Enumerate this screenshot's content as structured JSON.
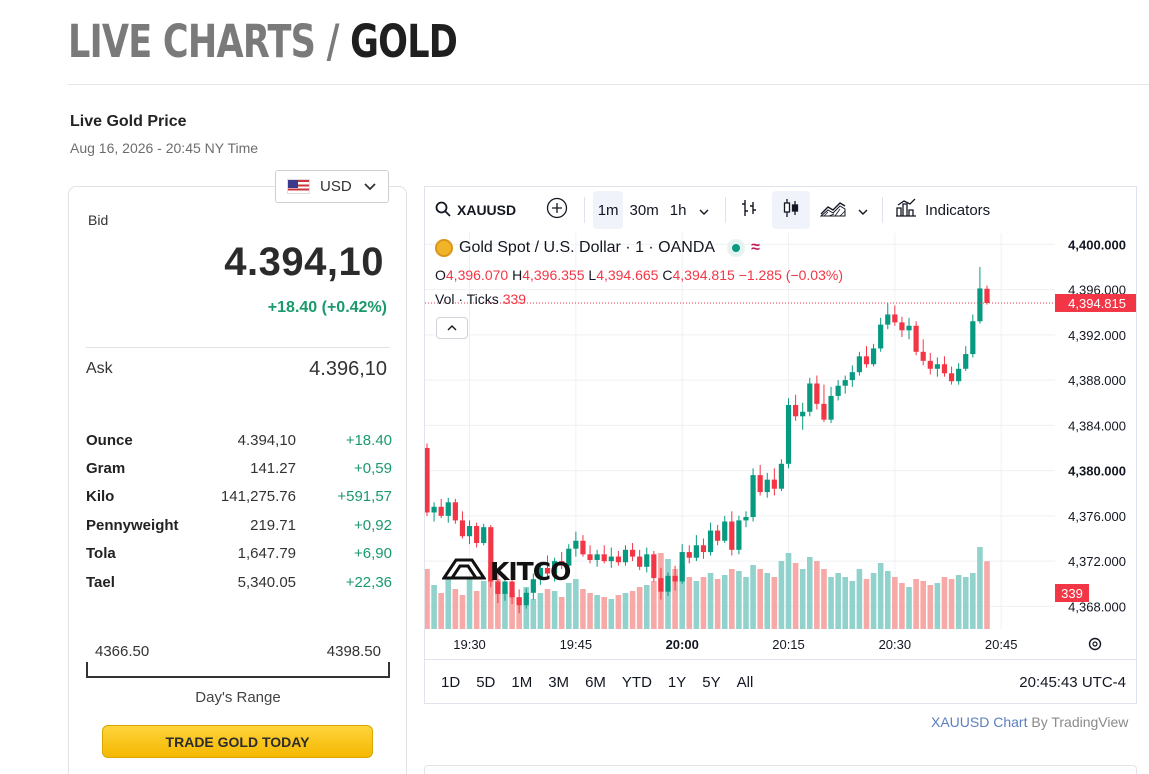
{
  "header": {
    "title_part1": "LIVE CHARTS / ",
    "title_part2": "GOLD"
  },
  "live": {
    "heading": "Live Gold Price",
    "timestamp": "Aug 16, 2026 - 20:45 NY Time"
  },
  "currency": {
    "selected": "USD"
  },
  "quote": {
    "bid_label": "Bid",
    "bid": "4.394,10",
    "change": "+18.40 (+0.42%)",
    "ask_label": "Ask",
    "ask": "4.396,10"
  },
  "conversions": [
    {
      "unit": "Ounce",
      "price": "4.394,10",
      "change": "+18.40"
    },
    {
      "unit": "Gram",
      "price": "141.27",
      "change": "+0,59"
    },
    {
      "unit": "Kilo",
      "price": "141,275.76",
      "change": "+591,57"
    },
    {
      "unit": "Pennyweight",
      "price": "219.71",
      "change": "+0,92"
    },
    {
      "unit": "Tola",
      "price": "1,647.79",
      "change": "+6,90"
    },
    {
      "unit": "Tael",
      "price": "5,340.05",
      "change": "+22,36"
    }
  ],
  "days_range": {
    "low": "4366.50",
    "high": "4398.50",
    "label": "Day's Range"
  },
  "trade_button": "TRADE GOLD TODAY",
  "toolbar": {
    "symbol": "XAUUSD",
    "intervals": [
      "1m",
      "30m",
      "1h"
    ],
    "indicators": "Indicators"
  },
  "legend": {
    "title": "Gold Spot / U.S. Dollar · 1 · OANDA",
    "o_label": "O",
    "o": "4,396.070",
    "h_label": "H",
    "h": "4,396.355",
    "l_label": "L",
    "l": "4,394.665",
    "c_label": "C",
    "c": "4,394.815",
    "chg": "−1.285 (−0.03%)",
    "vol_label": "Vol · Ticks",
    "vol": "339"
  },
  "watermark": "KITCO",
  "price_axis": {
    "ticks": [
      "4,400.000",
      "4,396.000",
      "4,392.000",
      "4,388.000",
      "4,384.000",
      "4,380.000",
      "4,376.000",
      "4,372.000",
      "4,368.000"
    ],
    "last_price": "4,394.815",
    "last_volume": "339"
  },
  "time_axis": {
    "ticks": [
      "19:30",
      "19:45",
      "20:00",
      "20:15",
      "20:30",
      "20:45"
    ]
  },
  "footer": {
    "ranges": [
      "1D",
      "5D",
      "1M",
      "3M",
      "6M",
      "YTD",
      "1Y",
      "5Y",
      "All"
    ],
    "clock": "20:45:43 UTC-4"
  },
  "credit": {
    "link": "XAUUSD Chart",
    "by": "By TradingView"
  },
  "colors": {
    "up": "#089981",
    "down": "#f23645",
    "up_vol": "#92d2cc",
    "down_vol": "#f7a9a7",
    "button": "#f4b800"
  },
  "chart_data": {
    "type": "candlestick",
    "symbol": "XAUUSD",
    "interval": "1m",
    "ylim": [
      4366,
      4401
    ],
    "candles": [
      [
        4382.0,
        4382.4,
        4376.0,
        4376.3,
        300
      ],
      [
        4376.3,
        4377.2,
        4375.5,
        4376.8,
        220
      ],
      [
        4376.8,
        4377.5,
        4375.8,
        4376.0,
        180
      ],
      [
        4376.0,
        4377.6,
        4375.4,
        4377.2,
        250
      ],
      [
        4377.2,
        4377.5,
        4375.3,
        4375.6,
        200
      ],
      [
        4375.6,
        4376.4,
        4374.0,
        4374.2,
        170
      ],
      [
        4374.2,
        4375.6,
        4373.5,
        4375.1,
        260
      ],
      [
        4375.1,
        4375.4,
        4373.2,
        4373.6,
        190
      ],
      [
        4373.6,
        4375.3,
        4373.4,
        4375.0,
        240
      ],
      [
        4375.0,
        4375.2,
        4369.7,
        4370.2,
        310
      ],
      [
        4370.2,
        4371.2,
        4368.3,
        4369.1,
        250
      ],
      [
        4369.1,
        4370.8,
        4368.5,
        4370.2,
        200
      ],
      [
        4370.2,
        4371.0,
        4368.2,
        4368.8,
        180
      ],
      [
        4368.8,
        4369.5,
        4367.4,
        4368.1,
        160
      ],
      [
        4368.1,
        4369.6,
        4367.8,
        4369.2,
        210
      ],
      [
        4369.2,
        4370.9,
        4368.6,
        4370.4,
        150
      ],
      [
        4370.4,
        4371.9,
        4369.9,
        4371.4,
        180
      ],
      [
        4371.4,
        4372.5,
        4370.5,
        4370.9,
        200
      ],
      [
        4370.9,
        4372.3,
        4370.2,
        4372.0,
        190
      ],
      [
        4372.0,
        4372.8,
        4371.3,
        4371.6,
        160
      ],
      [
        4371.6,
        4373.5,
        4371.2,
        4373.1,
        230
      ],
      [
        4373.1,
        4374.6,
        4372.4,
        4373.8,
        250
      ],
      [
        4373.8,
        4374.3,
        4372.4,
        4372.6,
        200
      ],
      [
        4372.6,
        4373.4,
        4371.8,
        4372.1,
        180
      ],
      [
        4372.1,
        4373.0,
        4371.5,
        4372.6,
        170
      ],
      [
        4372.6,
        4373.4,
        4371.8,
        4372.0,
        160
      ],
      [
        4372.0,
        4373.2,
        4371.4,
        4372.4,
        150
      ],
      [
        4372.4,
        4372.9,
        4371.6,
        4371.9,
        170
      ],
      [
        4371.9,
        4373.4,
        4371.6,
        4373.0,
        180
      ],
      [
        4373.0,
        4373.6,
        4372.0,
        4372.4,
        190
      ],
      [
        4372.4,
        4373.0,
        4371.2,
        4371.5,
        210
      ],
      [
        4371.5,
        4373.2,
        4371.0,
        4372.6,
        220
      ],
      [
        4372.6,
        4372.9,
        4370.2,
        4370.5,
        240
      ],
      [
        4370.5,
        4371.4,
        4368.6,
        4369.3,
        380
      ],
      [
        4369.3,
        4371.0,
        4368.9,
        4370.7,
        350
      ],
      [
        4370.7,
        4371.6,
        4369.4,
        4370.2,
        300
      ],
      [
        4370.2,
        4373.5,
        4370.0,
        4372.8,
        320
      ],
      [
        4372.8,
        4373.4,
        4371.8,
        4372.3,
        260
      ],
      [
        4372.3,
        4374.3,
        4372.0,
        4373.4,
        240
      ],
      [
        4373.4,
        4374.0,
        4372.2,
        4372.8,
        260
      ],
      [
        4372.8,
        4375.4,
        4372.5,
        4374.7,
        280
      ],
      [
        4374.7,
        4375.2,
        4373.4,
        4373.8,
        250
      ],
      [
        4373.8,
        4376.0,
        4373.6,
        4375.5,
        270
      ],
      [
        4375.5,
        4376.4,
        4372.5,
        4373.0,
        300
      ],
      [
        4373.0,
        4376.0,
        4372.6,
        4375.6,
        290
      ],
      [
        4375.6,
        4376.4,
        4375.0,
        4375.9,
        260
      ],
      [
        4375.9,
        4380.2,
        4375.5,
        4379.6,
        320
      ],
      [
        4379.6,
        4380.5,
        4377.8,
        4378.1,
        300
      ],
      [
        4378.1,
        4379.8,
        4377.6,
        4379.2,
        280
      ],
      [
        4379.2,
        4380.2,
        4377.8,
        4378.4,
        260
      ],
      [
        4378.4,
        4381.0,
        4378.2,
        4380.6,
        340
      ],
      [
        4380.6,
        4386.4,
        4380.2,
        4385.8,
        380
      ],
      [
        4385.8,
        4386.7,
        4384.4,
        4384.8,
        330
      ],
      [
        4384.8,
        4386.0,
        4383.6,
        4385.2,
        300
      ],
      [
        4385.2,
        4388.2,
        4384.8,
        4387.7,
        360
      ],
      [
        4387.7,
        4388.4,
        4385.4,
        4385.9,
        340
      ],
      [
        4385.9,
        4387.6,
        4384.3,
        4384.5,
        300
      ],
      [
        4384.5,
        4387.4,
        4384.2,
        4386.6,
        260
      ],
      [
        4386.6,
        4388.0,
        4386.2,
        4387.5,
        280
      ],
      [
        4387.5,
        4388.4,
        4386.8,
        4388.0,
        260
      ],
      [
        4388.0,
        4389.3,
        4387.4,
        4388.7,
        240
      ],
      [
        4388.7,
        4390.5,
        4388.4,
        4390.1,
        300
      ],
      [
        4390.1,
        4391.0,
        4389.1,
        4389.4,
        250
      ],
      [
        4389.4,
        4391.2,
        4389.2,
        4390.8,
        280
      ],
      [
        4390.8,
        4393.5,
        4390.5,
        4392.9,
        330
      ],
      [
        4392.9,
        4394.8,
        4392.5,
        4393.8,
        290
      ],
      [
        4393.8,
        4394.6,
        4392.8,
        4393.1,
        260
      ],
      [
        4393.1,
        4393.6,
        4391.8,
        4392.4,
        230
      ],
      [
        4392.4,
        4393.5,
        4391.6,
        4392.8,
        210
      ],
      [
        4392.8,
        4393.2,
        4390.2,
        4390.5,
        250
      ],
      [
        4390.5,
        4391.6,
        4389.3,
        4389.7,
        240
      ],
      [
        4389.7,
        4390.4,
        4388.5,
        4389.0,
        220
      ],
      [
        4389.0,
        4390.0,
        4388.3,
        4389.4,
        230
      ],
      [
        4389.4,
        4390.1,
        4388.3,
        4388.6,
        260
      ],
      [
        4388.6,
        4389.2,
        4387.6,
        4387.9,
        250
      ],
      [
        4387.9,
        4389.5,
        4387.6,
        4389.0,
        270
      ],
      [
        4389.0,
        4391.0,
        4388.8,
        4390.3,
        260
      ],
      [
        4390.3,
        4393.8,
        4390.0,
        4393.2,
        280
      ],
      [
        4393.2,
        4398.0,
        4393.0,
        4396.1,
        410
      ],
      [
        4396.07,
        4396.355,
        4394.665,
        4394.815,
        339
      ]
    ],
    "candle_fields": [
      "open",
      "high",
      "low",
      "close",
      "volume"
    ]
  }
}
